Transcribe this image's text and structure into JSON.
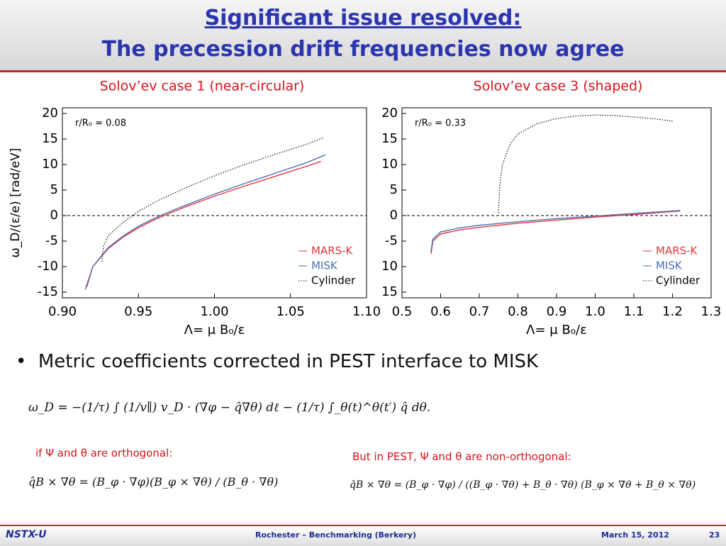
{
  "header": {
    "line1": "Significant issue resolved:",
    "line2": "The precession drift frequencies now agree"
  },
  "chart_data": [
    {
      "type": "line",
      "title": "Solov’ev case 1 (near-circular)",
      "annotation": "r/R₀ = 0.08",
      "xlabel": "Λ= μ B₀/ε",
      "ylabel": "ω_D/(ε/e) [rad/eV]",
      "xlim": [
        0.9,
        1.1
      ],
      "xticks": [
        {
          "value": 0.9,
          "label": "0.90"
        },
        0.95,
        {
          "value": 1.0,
          "label": "1.00"
        },
        1.05,
        {
          "value": 1.1,
          "label": "1.10"
        }
      ],
      "ylim": [
        -15,
        20
      ],
      "yticks": [
        -15,
        -10,
        -5,
        0,
        5,
        10,
        15,
        20
      ],
      "legend": "lower right",
      "series": [
        {
          "name": "MARS-K",
          "color": "#e8323c",
          "style": "solid",
          "x": [
            0.916,
            0.92,
            0.93,
            0.94,
            0.95,
            0.96,
            0.97,
            0.98,
            1.0,
            1.02,
            1.04,
            1.06,
            1.07
          ],
          "values": [
            -14,
            -10,
            -6.5,
            -4.2,
            -2.4,
            -0.9,
            0.4,
            1.6,
            3.8,
            5.8,
            7.7,
            9.6,
            10.6
          ]
        },
        {
          "name": "MISK",
          "color": "#4a6fb5",
          "style": "solid",
          "x": [
            0.915,
            0.92,
            0.93,
            0.94,
            0.95,
            0.96,
            0.97,
            0.98,
            1.0,
            1.02,
            1.04,
            1.06,
            1.073
          ],
          "values": [
            -14.5,
            -10,
            -6.3,
            -4,
            -2.1,
            -0.6,
            0.7,
            1.9,
            4.2,
            6.3,
            8.3,
            10.3,
            11.9
          ]
        },
        {
          "name": "Cylinder",
          "color": "#222222",
          "style": "dotted",
          "x": [
            0.926,
            0.927,
            0.93,
            0.94,
            0.95,
            0.96,
            0.98,
            1.0,
            1.02,
            1.04,
            1.06,
            1.072
          ],
          "values": [
            -9,
            -6,
            -4,
            -1.3,
            0.8,
            2.5,
            5.3,
            7.8,
            10,
            12,
            13.9,
            15.3
          ]
        }
      ]
    },
    {
      "type": "line",
      "title": "Solov’ev case 3 (shaped)",
      "annotation": "r/R₀ = 0.33",
      "xlabel": "Λ= μ B₀/ε",
      "xlim": [
        0.5,
        1.3
      ],
      "xticks": [
        0.5,
        0.6,
        0.7,
        0.8,
        0.9,
        {
          "value": 1.0,
          "label": "1.0"
        },
        1.1,
        1.2,
        1.3
      ],
      "ylim": [
        -15,
        20
      ],
      "yticks": [
        {
          "value": -15,
          "label": "15"
        },
        {
          "value": -10,
          "label": "10"
        },
        -5,
        0,
        5,
        10,
        15,
        20
      ],
      "legend": "lower right",
      "series": [
        {
          "name": "MARS-K",
          "color": "#e8323c",
          "style": "solid",
          "x": [
            0.575,
            0.58,
            0.6,
            0.65,
            0.7,
            0.8,
            0.9,
            1.0,
            1.1,
            1.2,
            1.22
          ],
          "values": [
            -7.5,
            -5,
            -3.6,
            -2.8,
            -2.3,
            -1.5,
            -0.9,
            -0.3,
            0.2,
            0.8,
            0.9
          ]
        },
        {
          "name": "MISK",
          "color": "#4a6fb5",
          "style": "solid",
          "x": [
            0.575,
            0.58,
            0.6,
            0.65,
            0.7,
            0.8,
            0.9,
            1.0,
            1.1,
            1.2,
            1.22
          ],
          "values": [
            -7,
            -4.6,
            -3.2,
            -2.4,
            -1.9,
            -1.2,
            -0.6,
            -0.1,
            0.4,
            0.9,
            1.0
          ]
        },
        {
          "name": "Cylinder",
          "color": "#222222",
          "style": "dotted",
          "x": [
            0.75,
            0.752,
            0.76,
            0.78,
            0.8,
            0.85,
            0.9,
            0.95,
            1.0,
            1.05,
            1.1,
            1.15,
            1.2
          ],
          "values": [
            0.5,
            5,
            10,
            14,
            16,
            18,
            19,
            19.5,
            19.7,
            19.6,
            19.3,
            19,
            18.5
          ]
        }
      ]
    }
  ],
  "bullet": "Metric coefficients corrected in PEST interface to MISK",
  "equation": "ω_D = −(1/τ) ∫ (1/v∥) v_D · (∇φ − q̂∇θ) dℓ − (1/τ) ∫_θ(t)^θ(t′) q̂ dθ.",
  "left_note": {
    "text": "if Ψ and θ are orthogonal:",
    "equation": "q̂B × ∇θ = (B_φ · ∇φ)(B_φ × ∇θ) / (B_θ · ∇θ)"
  },
  "right_note": {
    "text": "But in PEST, Ψ and θ are non-orthogonal:",
    "equation": "q̂B × ∇θ = (B_φ · ∇φ) / ((B_φ · ∇θ) + B_θ · ∇θ) (B_φ × ∇θ + B_θ × ∇θ)"
  },
  "footer": {
    "logo": "NSTX-U",
    "center": "Rochester – Benchmarking (Berkery)",
    "date": "March 15, 2012",
    "page": "23"
  }
}
